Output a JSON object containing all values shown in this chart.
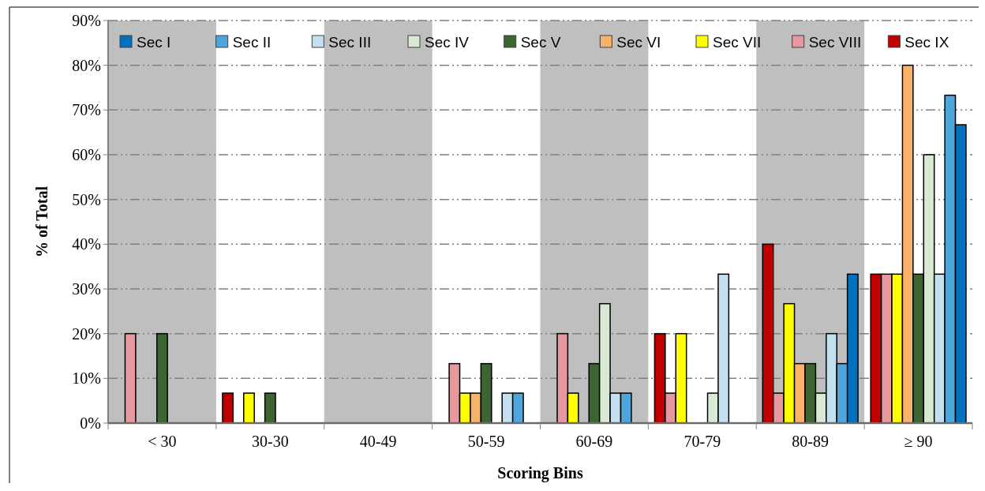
{
  "chart_data": {
    "type": "bar",
    "xlabel": "Scoring Bins",
    "ylabel": "% of Total",
    "categories": [
      "< 30",
      "30-30",
      "40-49",
      "50-59",
      "60-69",
      "70-79",
      "80-89",
      "≥ 90"
    ],
    "series": [
      {
        "name": "Sec IX",
        "color": "#c00000",
        "values": [
          null,
          6.7,
          null,
          null,
          null,
          20,
          40,
          33.3
        ]
      },
      {
        "name": "Sec VIII",
        "color": "#e6989f",
        "values": [
          20,
          null,
          null,
          13.3,
          20,
          6.7,
          6.7,
          33.3
        ]
      },
      {
        "name": "Sec VII",
        "color": "#ffff00",
        "values": [
          null,
          6.7,
          null,
          6.7,
          6.7,
          20,
          26.7,
          33.3
        ]
      },
      {
        "name": "Sec VI",
        "color": "#f9b26a",
        "values": [
          null,
          null,
          null,
          6.7,
          null,
          null,
          13.3,
          80
        ]
      },
      {
        "name": "Sec V",
        "color": "#3d6531",
        "values": [
          20,
          6.7,
          null,
          13.3,
          13.3,
          null,
          13.3,
          33.3
        ]
      },
      {
        "name": "Sec IV",
        "color": "#d8e9d4",
        "values": [
          null,
          null,
          null,
          null,
          26.7,
          6.7,
          6.7,
          60
        ]
      },
      {
        "name": "Sec III",
        "color": "#c3e0f1",
        "values": [
          null,
          null,
          null,
          6.7,
          6.7,
          33.3,
          20,
          33.3
        ]
      },
      {
        "name": "Sec II",
        "color": "#4da6dc",
        "values": [
          null,
          null,
          null,
          6.7,
          6.7,
          null,
          13.3,
          73.3
        ]
      },
      {
        "name": "Sec I",
        "color": "#0070c0",
        "values": [
          null,
          null,
          null,
          null,
          null,
          null,
          33.3,
          66.7
        ]
      }
    ],
    "ylim": [
      0,
      90
    ],
    "yticks": [
      {
        "value": 0,
        "label": "0%"
      },
      {
        "value": 10,
        "label": "10%"
      },
      {
        "value": 20,
        "label": "20%"
      },
      {
        "value": 30,
        "label": "30%"
      },
      {
        "value": 40,
        "label": "40%"
      },
      {
        "value": 50,
        "label": "50%"
      },
      {
        "value": 60,
        "label": "60%"
      },
      {
        "value": 70,
        "label": "70%"
      },
      {
        "value": 80,
        "label": "80%"
      },
      {
        "value": 90,
        "label": "90%"
      }
    ],
    "grid": "y",
    "legend": "top",
    "bands": [
      {
        "axis": "x",
        "from": "< 30",
        "to": "< 30",
        "color": "#bfbfbf"
      },
      {
        "axis": "x",
        "from": "40-49",
        "to": "40-49",
        "color": "#bfbfbf"
      },
      {
        "axis": "x",
        "from": "60-69",
        "to": "60-69",
        "color": "#bfbfbf"
      },
      {
        "axis": "x",
        "from": "80-89",
        "to": "80-89",
        "color": "#bfbfbf"
      }
    ]
  }
}
